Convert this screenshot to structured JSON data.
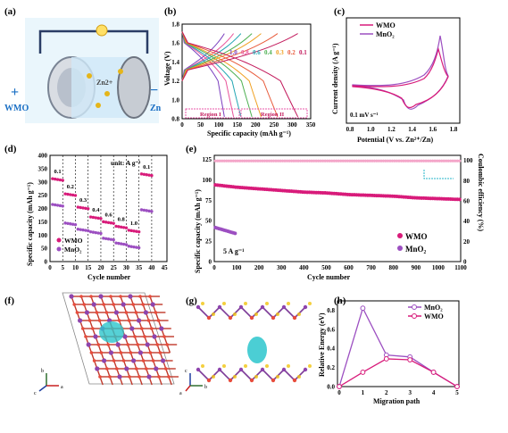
{
  "panels": {
    "a": {
      "label": "(a)",
      "ion": "Zn2+",
      "electrode_left": "WMO",
      "electrode_right": "Zn",
      "plus": "+",
      "minus": "−"
    },
    "b": {
      "label": "(b)",
      "ylabel": "Voltage (V)",
      "xlabel": "Specific capacity (mAh g⁻¹)",
      "region1": "Region I",
      "region2": "Region II",
      "rates": [
        "1.0",
        "0.8",
        "0.6",
        "0.4",
        "0.3",
        "0.2",
        "0.1"
      ],
      "rate_colors": [
        "#7b3fbf",
        "#e8539a",
        "#22a6b3",
        "#4caf50",
        "#f0a020",
        "#e85a3a",
        "#c2185b"
      ],
      "xticks": [
        "0",
        "50",
        "100",
        "150",
        "200",
        "250",
        "300",
        "350"
      ],
      "yticks": [
        "0.8",
        "1.0",
        "1.2",
        "1.4",
        "1.6",
        "1.8"
      ]
    },
    "c": {
      "label": "(c)",
      "ylabel": "Current density (A g⁻¹)",
      "xlabel": "Potential (V vs. Zn²⁺/Zn)",
      "scan": "0.1 mV s⁻¹",
      "legend": [
        "WMO",
        "MnO₂"
      ],
      "xticks": [
        "0.8",
        "1.0",
        "1.2",
        "1.4",
        "1.6",
        "1.8"
      ]
    },
    "d": {
      "label": "(d)",
      "ylabel": "Specific capacity (mAh g⁻¹)",
      "xlabel": "Cycle number",
      "unit": "unit: A g⁻¹",
      "rates": [
        "0.1",
        "0.2",
        "0.3",
        "0.4",
        "0.6",
        "0.8",
        "1.0",
        "0.1"
      ],
      "legend": [
        "WMO",
        "MnO₂"
      ],
      "xticks": [
        "0",
        "5",
        "10",
        "15",
        "20",
        "25",
        "30",
        "35",
        "40",
        "45"
      ],
      "yticks": [
        "0",
        "50",
        "100",
        "150",
        "200",
        "250",
        "300",
        "350",
        "400"
      ]
    },
    "e": {
      "label": "(e)",
      "ylabel": "Specific capacity (mAh g⁻¹)",
      "y2label": "Coulombic efficiency (%)",
      "xlabel": "Cycle number",
      "rate": "5 A g⁻¹",
      "legend": [
        "WMO",
        "MnO₂"
      ],
      "xticks": [
        "0",
        "100",
        "200",
        "300",
        "400",
        "500",
        "600",
        "700",
        "800",
        "900",
        "1000",
        "1100"
      ],
      "yticks": [
        "0",
        "25",
        "50",
        "75",
        "100",
        "125"
      ],
      "y2ticks": [
        "0",
        "20",
        "40",
        "60",
        "80",
        "100"
      ]
    },
    "f": {
      "label": "(f)",
      "axes": [
        "b",
        "c",
        "a"
      ]
    },
    "g": {
      "label": "(g)",
      "axes": [
        "c",
        "b",
        "a"
      ]
    },
    "h": {
      "label": "(h)",
      "ylabel": "Relative Energy (eV)",
      "xlabel": "Migration path",
      "legend": [
        "MnO₂",
        "WMO"
      ],
      "xticks": [
        "0",
        "1",
        "2",
        "3",
        "4",
        "5"
      ],
      "yticks": [
        "0.0",
        "0.2",
        "0.4",
        "0.6",
        "0.8"
      ]
    }
  },
  "colors": {
    "wmo": "#d81b7a",
    "mno2": "#9c4fc1",
    "accent": "#e91e8c"
  },
  "chart_data": [
    {
      "panel": "b",
      "type": "line",
      "xlabel": "Specific capacity (mAh g⁻¹)",
      "ylabel": "Voltage (V)",
      "xlim": [
        0,
        350
      ],
      "ylim": [
        0.8,
        1.8
      ],
      "series": [
        {
          "name": "1.0",
          "capacity": 115
        },
        {
          "name": "0.8",
          "capacity": 140
        },
        {
          "name": "0.6",
          "capacity": 160
        },
        {
          "name": "0.4",
          "capacity": 190
        },
        {
          "name": "0.3",
          "capacity": 215
        },
        {
          "name": "0.2",
          "capacity": 260
        },
        {
          "name": "0.1",
          "capacity": 315
        }
      ]
    },
    {
      "panel": "d",
      "type": "scatter",
      "xlabel": "Cycle number",
      "ylabel": "Specific capacity (mAh g⁻¹)",
      "xlim": [
        0,
        46
      ],
      "ylim": [
        0,
        400
      ],
      "series": [
        {
          "name": "WMO",
          "values": [
            312,
            255,
            205,
            168,
            150,
            133,
            118,
            330
          ]
        },
        {
          "name": "MnO₂",
          "values": [
            215,
            145,
            122,
            112,
            88,
            70,
            58,
            195
          ]
        }
      ]
    },
    {
      "panel": "e",
      "type": "scatter",
      "xlabel": "Cycle number",
      "xlim": [
        0,
        1100
      ],
      "ylim": [
        0,
        130
      ],
      "series": [
        {
          "name": "WMO",
          "x": [
            0,
            100,
            200,
            300,
            400,
            500,
            600,
            700,
            800,
            900,
            1000,
            1100
          ],
          "values": [
            94,
            91,
            89,
            87,
            85,
            84,
            82,
            81,
            80,
            78,
            77,
            76
          ]
        },
        {
          "name": "MnO₂",
          "x": [
            0,
            25,
            50,
            75,
            100
          ],
          "values": [
            42,
            39,
            37,
            35,
            34
          ]
        }
      ]
    },
    {
      "panel": "h",
      "type": "line",
      "xlabel": "Migration path",
      "ylabel": "Relative Energy (eV)",
      "xlim": [
        0,
        5
      ],
      "ylim": [
        0,
        0.85
      ],
      "series": [
        {
          "name": "MnO₂",
          "x": [
            0,
            1,
            2,
            3,
            4,
            5
          ],
          "values": [
            0,
            0.82,
            0.33,
            0.31,
            0.15,
            0
          ]
        },
        {
          "name": "WMO",
          "x": [
            0,
            1,
            2,
            3,
            4,
            5
          ],
          "values": [
            0,
            0.15,
            0.29,
            0.28,
            0.15,
            0
          ]
        }
      ]
    }
  ]
}
